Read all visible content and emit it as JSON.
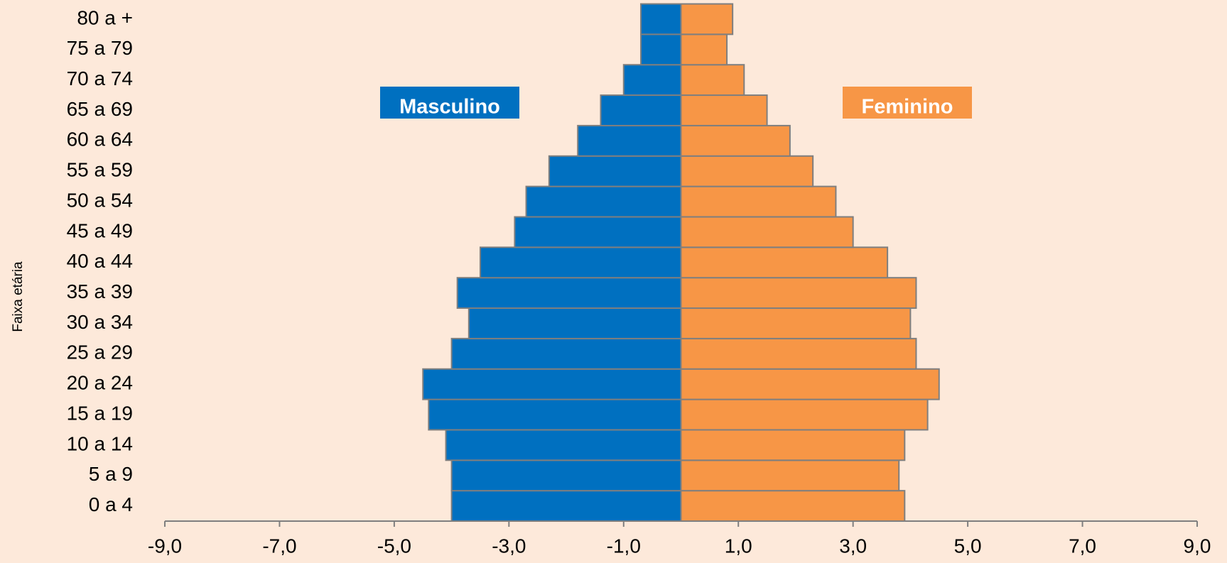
{
  "chart_data": {
    "type": "pyramid",
    "y_label": "Faixa etária",
    "categories": [
      "0 a 4",
      "5 a 9",
      "10 a 14",
      "15 a 19",
      "20 a 24",
      "25 a 29",
      "30 a 34",
      "35 a 39",
      "40 a 44",
      "45 a 49",
      "50 a 54",
      "55 a 59",
      "60 a 64",
      "65 a 69",
      "70 a 74",
      "75 a 79",
      "80 a +"
    ],
    "series": [
      {
        "name": "Masculino",
        "color": "#0070c0",
        "values": [
          -4.0,
          -4.0,
          -4.1,
          -4.4,
          -4.5,
          -4.0,
          -3.7,
          -3.9,
          -3.5,
          -2.9,
          -2.7,
          -2.3,
          -1.8,
          -1.4,
          -1.0,
          -0.7,
          -0.7
        ]
      },
      {
        "name": "Feminino",
        "color": "#f79646",
        "values": [
          3.9,
          3.8,
          3.9,
          4.3,
          4.5,
          4.1,
          4.0,
          4.1,
          3.6,
          3.0,
          2.7,
          2.3,
          1.9,
          1.5,
          1.1,
          0.8,
          0.9
        ]
      }
    ],
    "xlim": [
      -9,
      9
    ],
    "xticks": [
      {
        "value": -9,
        "label": "-9,0"
      },
      {
        "value": -7,
        "label": "-7,0"
      },
      {
        "value": -5,
        "label": "-5,0"
      },
      {
        "value": -3,
        "label": "-3,0"
      },
      {
        "value": -1,
        "label": "-1,0"
      },
      {
        "value": 1,
        "label": "1,0"
      },
      {
        "value": 3,
        "label": "3,0"
      },
      {
        "value": 5,
        "label": "5,0"
      },
      {
        "value": 7,
        "label": "7,0"
      },
      {
        "value": 9,
        "label": "9,0"
      }
    ]
  }
}
